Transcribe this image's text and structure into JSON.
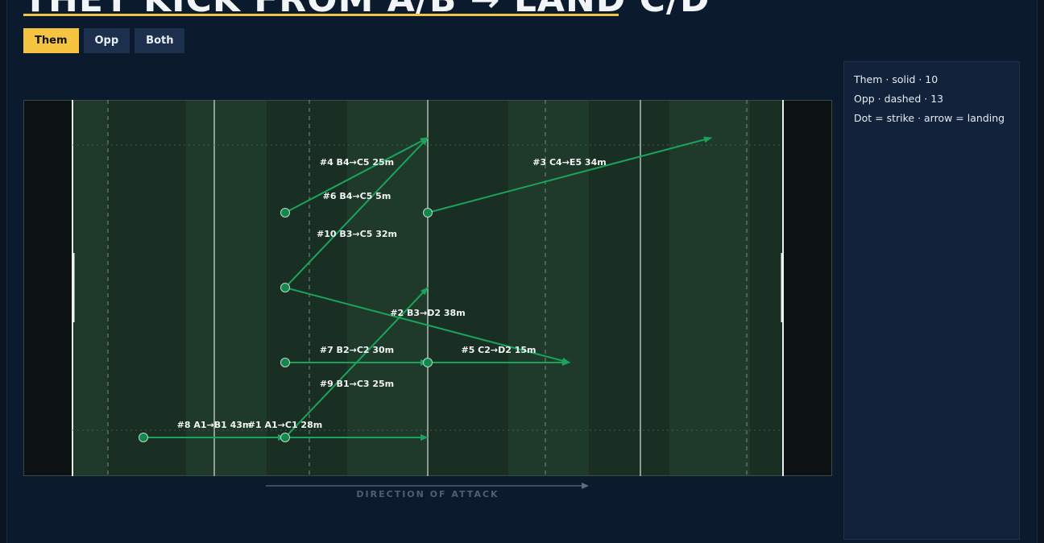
{
  "page": {
    "title": "THEY KICK FROM A/B → LAND C/D",
    "tabs": [
      {
        "label": "Them",
        "active": true
      },
      {
        "label": "Opp",
        "active": false
      },
      {
        "label": "Both",
        "active": false
      }
    ],
    "direction_label": "DIRECTION OF ATTACK",
    "legend": {
      "line1": "Them · solid · 10",
      "line2": "Opp · dashed · 13",
      "line3": "Dot = strike · arrow = landing"
    }
  },
  "colors": {
    "accent": "#f5c542",
    "kick_line": "#1aa35a",
    "dot_fill": "#0e8a4d",
    "pitch_dark": "#1a2f24",
    "pitch_light": "#1f392b"
  },
  "kicks": [
    {
      "label": "#4 B4→C5 25m",
      "from": "B4",
      "to": "C5"
    },
    {
      "label": "#3 C4→E5 34m",
      "from": "C4",
      "to": "E5"
    },
    {
      "label": "#6 B4→C5 5m",
      "from": "B4",
      "to": "C5"
    },
    {
      "label": "#10 B3→C5 32m",
      "from": "B3",
      "to": "C5"
    },
    {
      "label": "#2 B3→D2 38m",
      "from": "B3",
      "to": "D2"
    },
    {
      "label": "#7 B2→C2 30m",
      "from": "B2",
      "to": "C2"
    },
    {
      "label": "#5 C2→D2 15m",
      "from": "C2",
      "to": "D2"
    },
    {
      "label": "#9 B1→C3 25m",
      "from": "B1",
      "to": "C3"
    },
    {
      "label": "#8 A1→B1 43m",
      "from": "A1",
      "to": "B1"
    },
    {
      "label": "#1 A1→C1 28m",
      "from": "A1",
      "to": "C1"
    }
  ]
}
